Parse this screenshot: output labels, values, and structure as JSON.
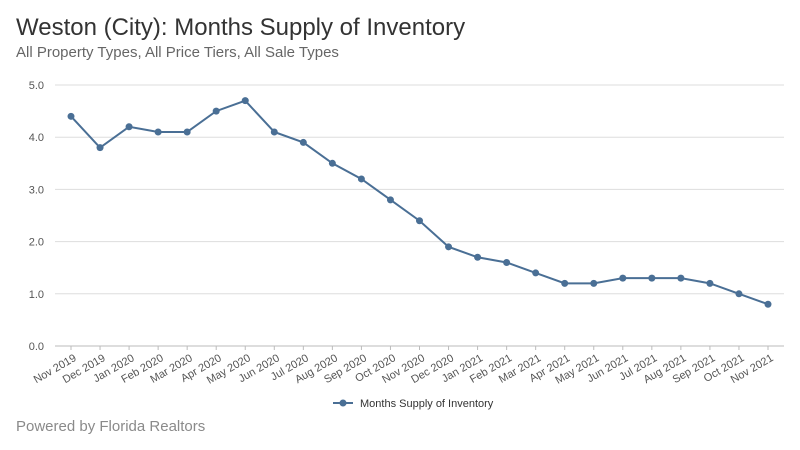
{
  "title": "Weston (City): Months Supply of Inventory",
  "subtitle": "All Property Types, All Price Tiers, All Sale Types",
  "footer": "Powered by Florida Realtors",
  "colors": {
    "series": "#4a6f95",
    "grid": "#dddddd",
    "axis": "#bbbbbb"
  },
  "chart_data": {
    "type": "line",
    "title": "Weston (City): Months Supply of Inventory",
    "subtitle": "All Property Types, All Price Tiers, All Sale Types",
    "xlabel": "",
    "ylabel": "",
    "ylim": [
      0,
      5
    ],
    "y_ticks": [
      "0.0",
      "1.0",
      "2.0",
      "3.0",
      "4.0",
      "5.0"
    ],
    "grid": true,
    "legend_position": "bottom",
    "categories": [
      "Nov 2019",
      "Dec 2019",
      "Jan 2020",
      "Feb 2020",
      "Mar 2020",
      "Apr 2020",
      "May 2020",
      "Jun 2020",
      "Jul 2020",
      "Aug 2020",
      "Sep 2020",
      "Oct 2020",
      "Nov 2020",
      "Dec 2020",
      "Jan 2021",
      "Feb 2021",
      "Mar 2021",
      "Apr 2021",
      "May 2021",
      "Jun 2021",
      "Jul 2021",
      "Aug 2021",
      "Sep 2021",
      "Oct 2021",
      "Nov 2021"
    ],
    "series": [
      {
        "name": "Months Supply of Inventory",
        "values": [
          4.4,
          3.8,
          4.2,
          4.1,
          4.1,
          4.5,
          4.7,
          4.1,
          3.9,
          3.5,
          3.2,
          2.8,
          2.4,
          1.9,
          1.7,
          1.6,
          1.4,
          1.2,
          1.2,
          1.3,
          1.3,
          1.3,
          1.2,
          1.0,
          0.8
        ]
      }
    ]
  }
}
